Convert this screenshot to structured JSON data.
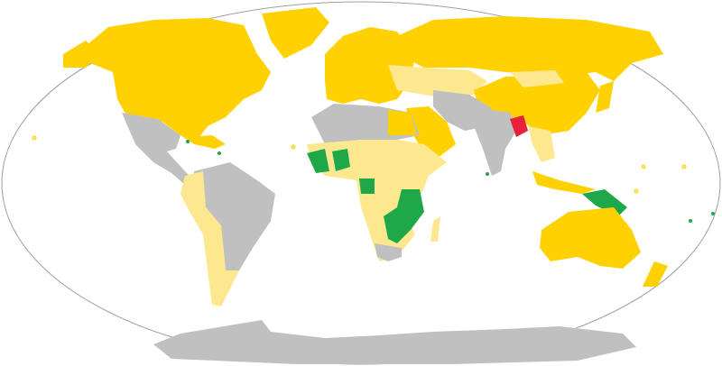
{
  "map": {
    "projection_outline": "ellipse",
    "colors": {
      "ocean": "#ffffff",
      "outline": "#a0a0a0",
      "category_yellow": "#ffd100",
      "category_light_yellow": "#fde88f",
      "category_green": "#1fa84a",
      "category_red": "#e8203c",
      "no_data_gray": "#c0c0c0"
    }
  }
}
